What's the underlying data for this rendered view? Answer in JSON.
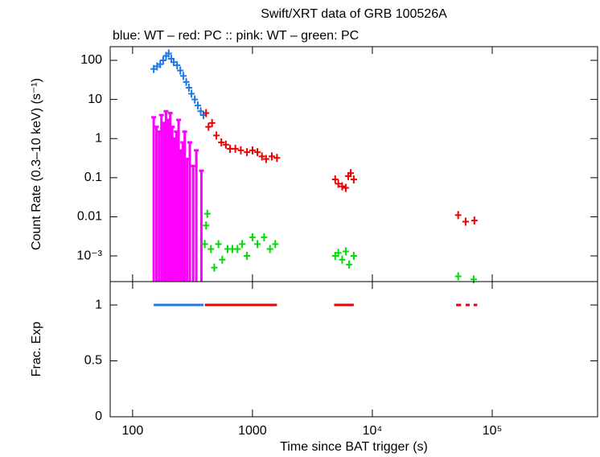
{
  "chart_data": [
    {
      "type": "scatter",
      "title": "Swift/XRT data of GRB 100526A",
      "subtitle": "blue: WT  – red: PC  :: pink: WT  – green: PC",
      "ylabel": "Count Rate (0.3–10 keV) (s⁻¹)",
      "xlog": true,
      "ylog": true,
      "xlim": [
        65,
        757000
      ],
      "ylim": [
        0.00022,
        224
      ],
      "yticks": [
        100,
        10,
        1,
        0.1,
        0.01,
        {
          "value": 0.001,
          "label": "10⁻³"
        }
      ],
      "series": [
        {
          "color": "#1e78e6",
          "style": "cross",
          "x": [
            150,
            160,
            170,
            180,
            190,
            200,
            210,
            220,
            235,
            250,
            265,
            280,
            295,
            310,
            330,
            350,
            370,
            390
          ],
          "values": [
            60,
            70,
            80,
            100,
            130,
            150,
            110,
            90,
            75,
            55,
            40,
            28,
            20,
            14,
            10,
            7,
            5,
            4
          ]
        },
        {
          "color": "#ff00ff",
          "style": "spike",
          "x": [
            150,
            158,
            166,
            174,
            182,
            190,
            198,
            206,
            214,
            222,
            232,
            242,
            252,
            262,
            272,
            285,
            300,
            320,
            340,
            375
          ],
          "values": [
            3.5,
            2,
            1.5,
            4,
            2.5,
            5,
            3,
            4.5,
            2,
            1,
            1.5,
            3,
            0.5,
            0.8,
            1.5,
            0.3,
            0.8,
            0.2,
            0.5,
            0.15
          ]
        },
        {
          "color": "#ee0000",
          "style": "cross",
          "x": [
            410,
            430,
            460,
            500,
            550,
            600,
            650,
            720,
            800,
            900,
            1000,
            1100,
            1200,
            1300,
            1450,
            1600,
            4900,
            5200,
            5600,
            6000,
            6300,
            6600,
            7000,
            52000,
            60000,
            71000
          ],
          "values": [
            4.5,
            2,
            2.5,
            1.2,
            0.8,
            0.7,
            0.55,
            0.55,
            0.5,
            0.45,
            0.5,
            0.45,
            0.35,
            0.3,
            0.35,
            0.32,
            0.09,
            0.07,
            0.06,
            0.055,
            0.11,
            0.13,
            0.09,
            0.011,
            0.0075,
            0.008
          ]
        },
        {
          "color": "#00dd00",
          "style": "cross",
          "x": [
            400,
            410,
            420,
            450,
            480,
            520,
            560,
            620,
            680,
            750,
            820,
            900,
            1000,
            1100,
            1250,
            1400,
            1550,
            4900,
            5200,
            5600,
            6000,
            6400,
            7000,
            52000,
            70000
          ],
          "values": [
            0.002,
            0.006,
            0.012,
            0.0015,
            0.0005,
            0.002,
            0.0008,
            0.0015,
            0.0015,
            0.0015,
            0.002,
            0.001,
            0.003,
            0.002,
            0.003,
            0.0015,
            0.002,
            0.001,
            0.0012,
            0.0008,
            0.0013,
            0.0006,
            0.001,
            0.0003,
            0.00025
          ]
        }
      ]
    },
    {
      "type": "line",
      "ylabel": "Frac. Exp",
      "xlabel": "Time since BAT trigger (s)",
      "xlog": true,
      "xlim": [
        65,
        757000
      ],
      "ylim": [
        0,
        1.209
      ],
      "xticks": [
        100,
        1000,
        {
          "value": 10000,
          "label": "10⁴"
        },
        {
          "value": 100000,
          "label": "10⁵"
        }
      ],
      "yticks": [
        0,
        0.5,
        1
      ],
      "series": [
        {
          "color": "#1e78e6",
          "x": [
            150,
            390
          ],
          "values": [
            1,
            1
          ]
        },
        {
          "color": "#ee0000",
          "x": [
            400,
            1600
          ],
          "values": [
            1,
            1
          ]
        },
        {
          "color": "#ee0000",
          "x": [
            4800,
            7000
          ],
          "values": [
            1,
            1
          ]
        },
        {
          "color": "#ee0000",
          "x": [
            50000,
            55000
          ],
          "values": [
            1,
            1
          ]
        },
        {
          "color": "#ee0000",
          "x": [
            60000,
            65000
          ],
          "values": [
            1,
            1
          ]
        },
        {
          "color": "#ee0000",
          "x": [
            70000,
            75000
          ],
          "values": [
            1,
            1
          ]
        }
      ]
    }
  ]
}
